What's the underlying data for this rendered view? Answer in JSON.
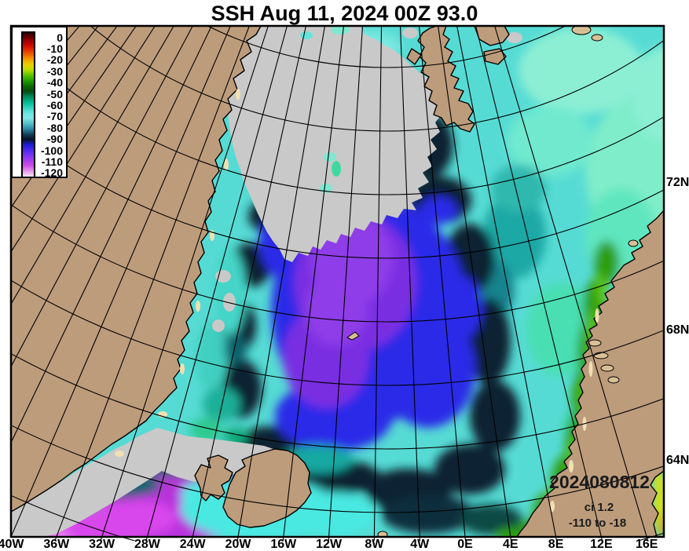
{
  "title": "SSH Aug 11, 2024 00Z 93.0",
  "legend": {
    "ticks": [
      "0",
      "-10",
      "-20",
      "-30",
      "-40",
      "-50",
      "-60",
      "-70",
      "-80",
      "-90",
      "-100",
      "-110",
      "-120"
    ],
    "gradient": [
      "#300000",
      "#7A0000",
      "#C00000",
      "#E02000",
      "#EE5E00",
      "#F29E00",
      "#E8D200",
      "#B8DC00",
      "#58C400",
      "#1E9E00",
      "#0A6A00",
      "#0A4A10",
      "#008A5E",
      "#00B88E",
      "#2ED2C0",
      "#66E4DE",
      "#7EE8E4",
      "#55BFC8",
      "#2E8CA8",
      "#14445E",
      "#071226",
      "#1C1CD8",
      "#4A28EE",
      "#7A34EE",
      "#A63EEA",
      "#CC52E8",
      "#E69AEC",
      "#F8E6F8"
    ]
  },
  "axes": {
    "lon_labels": [
      "40W",
      "36W",
      "32W",
      "28W",
      "24W",
      "20W",
      "16W",
      "12W",
      "8W",
      "4W",
      "0E",
      "4E",
      "8E",
      "12E",
      "16E"
    ],
    "lat_labels": [
      "72N",
      "68N",
      "64N"
    ]
  },
  "annotations": {
    "timestamp": "2024080812",
    "contour_interval": "ci 1.2",
    "value_range": "-110 to -18"
  },
  "map": {
    "ocean_color": "#56DBD4",
    "land_color": "#BD9C7C",
    "ice_color": "#C9C9C9",
    "features": [
      "greenland",
      "sea-ice",
      "iceland",
      "svalbard",
      "norway",
      "jan-mayen"
    ]
  }
}
